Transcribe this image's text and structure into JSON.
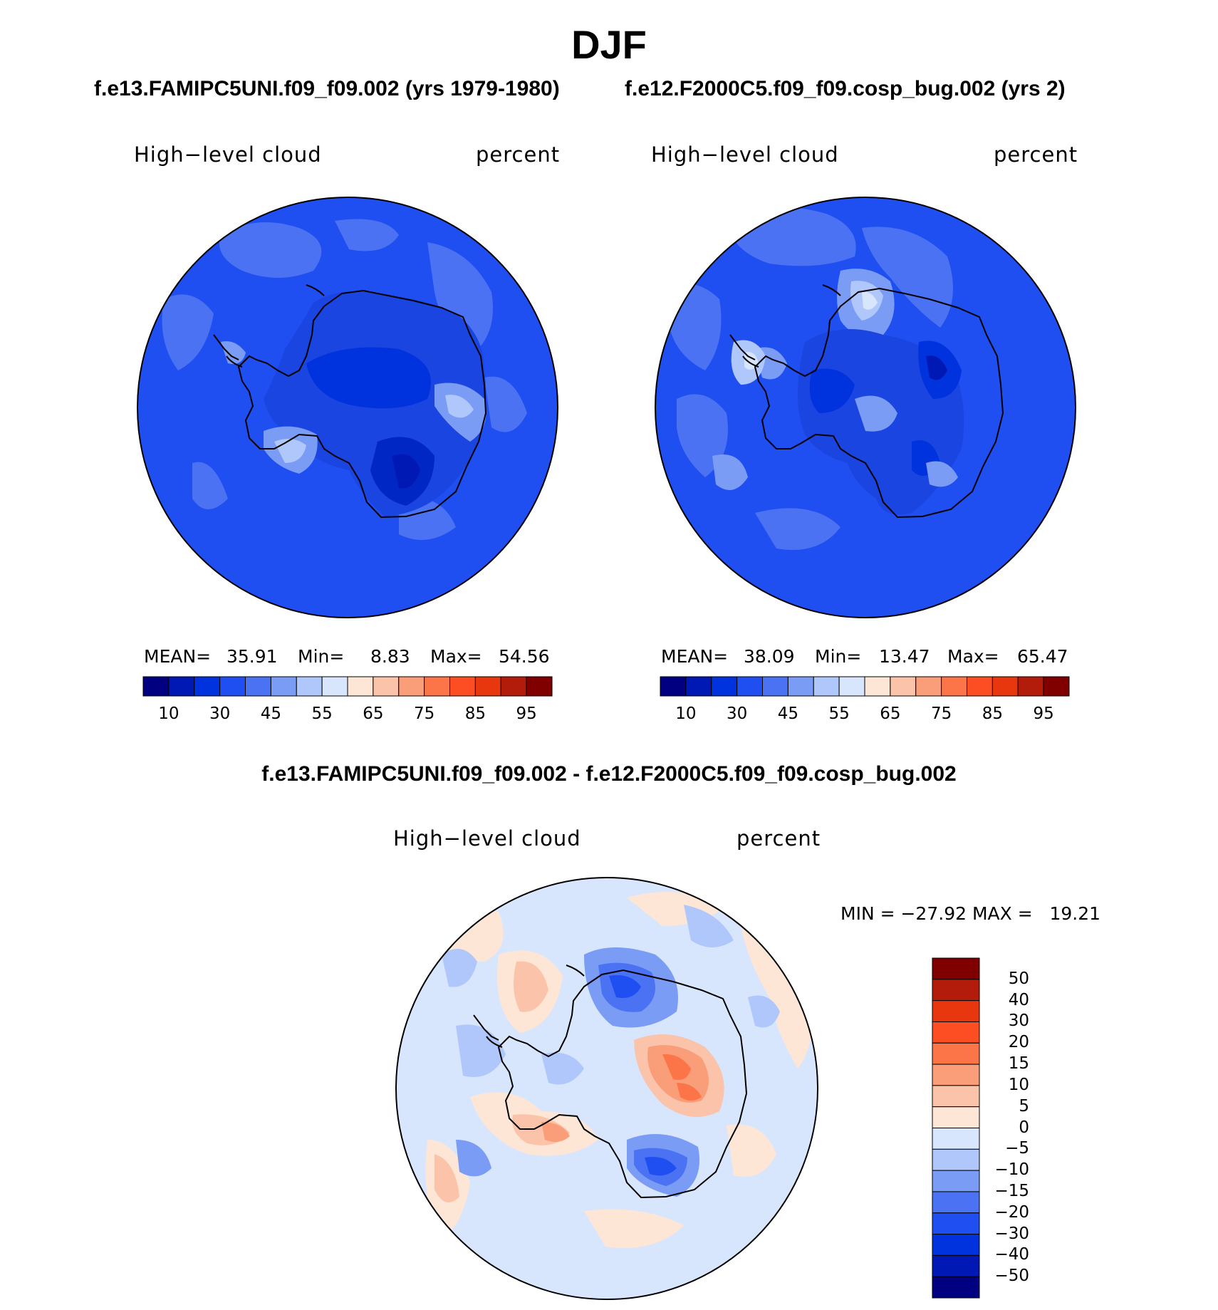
{
  "season": "DJF",
  "panels": [
    {
      "case_title": "f.e13.FAMIPC5UNI.f09_f09.002 (yrs 1979-1980)",
      "variable": "High−level cloud",
      "units": "percent",
      "mean_label": "MEAN=",
      "mean": "35.91",
      "min_label": "Min=",
      "min": "8.83",
      "max_label": "Max=",
      "max": "54.56"
    },
    {
      "case_title": "f.e12.F2000C5.f09_f09.cosp_bug.002 (yrs 2)",
      "variable": "High−level cloud",
      "units": "percent",
      "mean_label": "MEAN=",
      "mean": "38.09",
      "min_label": "Min=",
      "min": "13.47",
      "max_label": "Max=",
      "max": "65.47"
    }
  ],
  "abs_colorbar": {
    "colors": [
      "#000080",
      "#0019b4",
      "#0033dd",
      "#1f4ff0",
      "#4a72f2",
      "#7a9cf5",
      "#afc7fa",
      "#d8e6fd",
      "#fde6d6",
      "#fbc3a9",
      "#f99e78",
      "#fb7549",
      "#fc4e22",
      "#e8360f",
      "#b31c0a",
      "#800000"
    ],
    "tick_labels": [
      "10",
      "30",
      "45",
      "55",
      "65",
      "75",
      "85",
      "95"
    ]
  },
  "diff": {
    "title": "f.e13.FAMIPC5UNI.f09_f09.002 - f.e12.F2000C5.f09_f09.cosp_bug.002",
    "variable": "High−level cloud",
    "units": "percent",
    "minmax_text": "MIN = −27.92 MAX =   19.21",
    "colorbar": {
      "colors": [
        "#800000",
        "#b31c0a",
        "#e8360f",
        "#fc4e22",
        "#fb7549",
        "#f99e78",
        "#fbc3a9",
        "#fde6d6",
        "#d8e6fd",
        "#afc7fa",
        "#7a9cf5",
        "#4a72f2",
        "#1f4ff0",
        "#0033dd",
        "#0019b4",
        "#000080"
      ],
      "tick_labels": [
        "50",
        "40",
        "30",
        "20",
        "15",
        "10",
        "5",
        "0",
        "−5",
        "−10",
        "−15",
        "−20",
        "−30",
        "−40",
        "−50"
      ]
    }
  }
}
